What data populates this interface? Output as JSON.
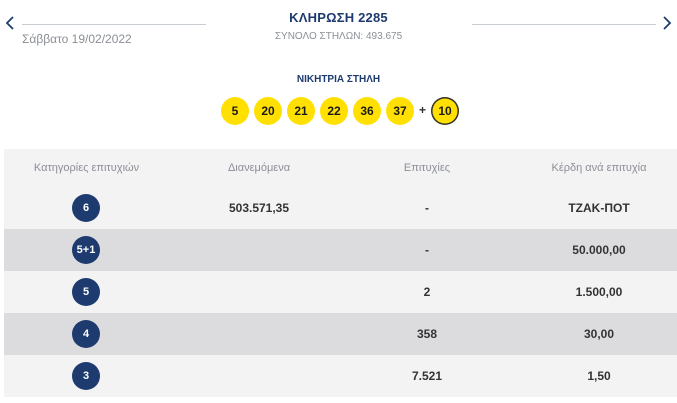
{
  "header": {
    "prev_icon": "chevron-left-icon",
    "next_icon": "chevron-right-icon",
    "date": "Σάββατο 19/02/2022",
    "draw_title": "ΚΛΗΡΩΣΗ 2285",
    "total_columns": "ΣΥΝΟΛΟ ΣΤΗΛΩΝ: 493.675"
  },
  "winning_column": {
    "title": "ΝΙΚΗΤΡΙΑ ΣΤΗΛΗ",
    "numbers": [
      "5",
      "20",
      "21",
      "22",
      "36",
      "37"
    ],
    "plus": "+",
    "joker": "10",
    "ball_color": "#ffe000"
  },
  "table": {
    "headers": [
      "Κατηγορίες επιτυχιών",
      "Διανεμόμενα",
      "Επιτυχίες",
      "Κέρδη ανά επιτυχία"
    ],
    "rows": [
      {
        "category": "6",
        "distributed": "503.571,35",
        "winners": "-",
        "prize": "ΤΖΑΚ-ΠΟΤ"
      },
      {
        "category": "5+1",
        "distributed": "",
        "winners": "-",
        "prize": "50.000,00"
      },
      {
        "category": "5",
        "distributed": "",
        "winners": "2",
        "prize": "1.500,00"
      },
      {
        "category": "4",
        "distributed": "",
        "winners": "358",
        "prize": "30,00"
      },
      {
        "category": "3",
        "distributed": "",
        "winners": "7.521",
        "prize": "1,50"
      }
    ],
    "badge_color": "#1d3b6e"
  }
}
